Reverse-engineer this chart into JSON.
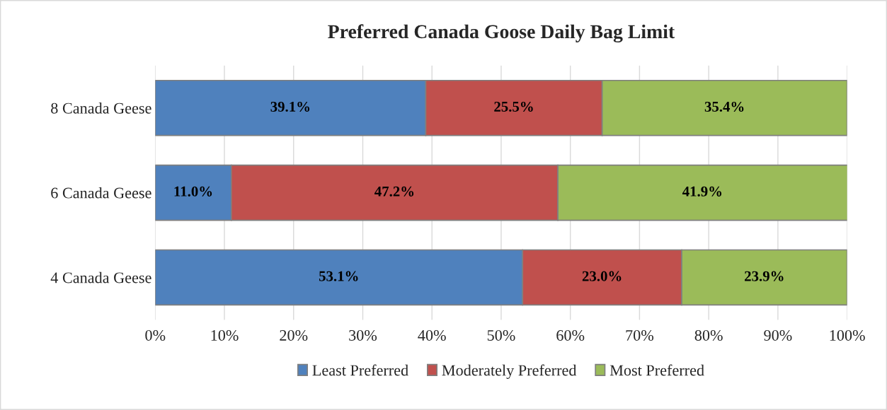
{
  "chart_data": {
    "type": "bar",
    "orientation": "horizontal",
    "stacked": true,
    "title": "Preferred Canada Goose Daily Bag Limit",
    "categories": [
      "8 Canada Geese",
      "6 Canada Geese",
      "4 Canada Geese"
    ],
    "series": [
      {
        "name": "Least Preferred",
        "color": "#4f81bd",
        "values": [
          39.1,
          11.0,
          53.1
        ],
        "value_labels": [
          "39.1%",
          "11.0%",
          "53.1%"
        ]
      },
      {
        "name": "Moderately Preferred",
        "color": "#c0504d",
        "values": [
          25.5,
          47.2,
          23.0
        ],
        "value_labels": [
          "25.5%",
          "47.2%",
          "23.0%"
        ]
      },
      {
        "name": "Most Preferred",
        "color": "#9bbb59",
        "values": [
          35.4,
          41.9,
          23.9
        ],
        "value_labels": [
          "35.4%",
          "41.9%",
          "23.9%"
        ]
      }
    ],
    "xlim": [
      0,
      100
    ],
    "xticks": [
      {
        "value": 0,
        "label": "0%"
      },
      {
        "value": 10,
        "label": "10%"
      },
      {
        "value": 20,
        "label": "20%"
      },
      {
        "value": 30,
        "label": "30%"
      },
      {
        "value": 40,
        "label": "40%"
      },
      {
        "value": 50,
        "label": "50%"
      },
      {
        "value": 60,
        "label": "60%"
      },
      {
        "value": 70,
        "label": "70%"
      },
      {
        "value": 80,
        "label": "80%"
      },
      {
        "value": 90,
        "label": "90%"
      },
      {
        "value": 100,
        "label": "100%"
      }
    ],
    "grid": "x",
    "legend": "bottom"
  }
}
